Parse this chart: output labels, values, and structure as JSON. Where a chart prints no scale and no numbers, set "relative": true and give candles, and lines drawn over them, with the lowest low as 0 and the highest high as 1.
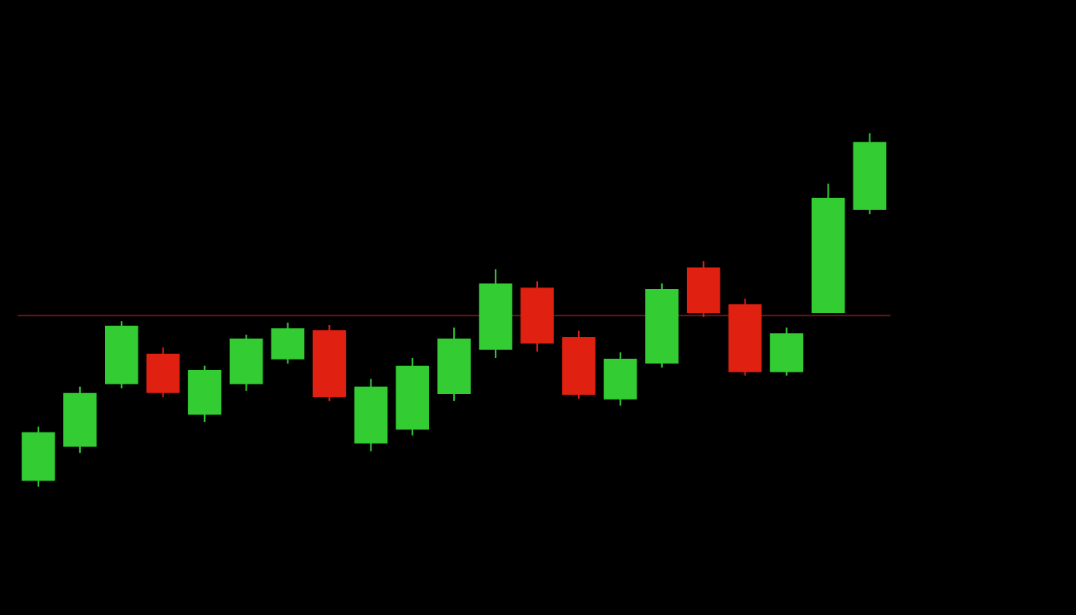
{
  "chart_data": {
    "type": "candlestick",
    "relative": true,
    "tick_labels": false,
    "categories": [
      null,
      null,
      null,
      null,
      null,
      null,
      null,
      null,
      null,
      null,
      null,
      null,
      null,
      null,
      null,
      null,
      null,
      null,
      null,
      null,
      null
    ],
    "ohlc": [
      [
        0.016,
        0.17,
        0,
        0.154
      ],
      [
        0.113,
        0.283,
        0.095,
        0.265
      ],
      [
        0.29,
        0.468,
        0.278,
        0.455
      ],
      [
        0.376,
        0.394,
        0.253,
        0.265
      ],
      [
        0.204,
        0.342,
        0.183,
        0.33
      ],
      [
        0.29,
        0.43,
        0.271,
        0.419
      ],
      [
        0.36,
        0.464,
        0.348,
        0.448
      ],
      [
        0.443,
        0.457,
        0.242,
        0.253
      ],
      [
        0.122,
        0.305,
        0.1,
        0.283
      ],
      [
        0.161,
        0.364,
        0.145,
        0.342
      ],
      [
        0.262,
        0.45,
        0.242,
        0.419
      ],
      [
        0.387,
        0.615,
        0.364,
        0.575
      ],
      [
        0.563,
        0.581,
        0.382,
        0.405
      ],
      [
        0.423,
        0.441,
        0.249,
        0.26
      ],
      [
        0.247,
        0.38,
        0.229,
        0.362
      ],
      [
        0.348,
        0.575,
        0.337,
        0.559
      ],
      [
        0.62,
        0.638,
        0.48,
        0.491
      ],
      [
        0.516,
        0.532,
        0.314,
        0.324
      ],
      [
        0.324,
        0.45,
        0.314,
        0.434
      ],
      [
        0.491,
        0.857,
        0.491,
        0.817
      ],
      [
        0.783,
        1,
        0.771,
        0.975
      ]
    ],
    "colors": [
      "#33cc33",
      "#33cc33",
      "#33cc33",
      "#e02010",
      "#33cc33",
      "#33cc33",
      "#33cc33",
      "#e02010",
      "#33cc33",
      "#33cc33",
      "#33cc33",
      "#33cc33",
      "#e02010",
      "#e02010",
      "#33cc33",
      "#33cc33",
      "#e02010",
      "#e02010",
      "#33cc33",
      "#33cc33",
      "#33cc33"
    ],
    "ref_lines": [
      {
        "axis": "y",
        "value": 0.484,
        "color": "#8b1a1a"
      }
    ]
  }
}
